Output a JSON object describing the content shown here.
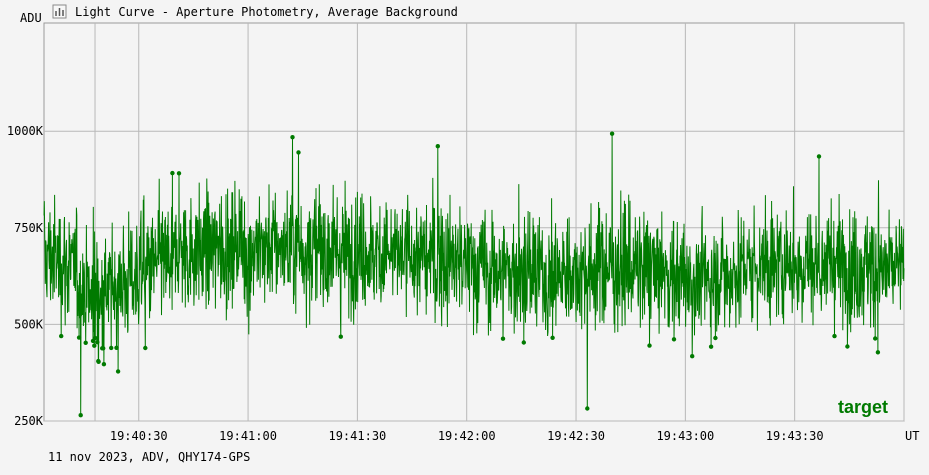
{
  "window": {
    "title": "Light Curve - Aperture Photometry, Average Background",
    "icon": "light-curve-icon"
  },
  "footer": {
    "info": "11 nov 2023, ADV, QHY174-GPS"
  },
  "colors": {
    "background": "#f4f4f4",
    "plot_background": "#f4f4f4",
    "grid": "#b8b8b8",
    "series": "#007a00",
    "series_label": "#007a00"
  },
  "chart_data": {
    "type": "scatter",
    "title": "Light Curve - Aperture Photometry, Average Background",
    "ylabel": "ADU",
    "xlabel": "UT",
    "y_ticks": [
      {
        "value": 250000,
        "label": "250K"
      },
      {
        "value": 500000,
        "label": "500K"
      },
      {
        "value": 750000,
        "label": "750K"
      },
      {
        "value": 1000000,
        "label": "1000K"
      }
    ],
    "x_ticks": [
      "19:40:30",
      "19:41:00",
      "19:41:30",
      "19:42:00",
      "19:42:30",
      "19:43:00",
      "19:43:30"
    ],
    "xlim": [
      "19:40:04",
      "19:44:00"
    ],
    "ylim": [
      250000,
      1280000
    ],
    "grid": true,
    "series": [
      {
        "name": "target",
        "connected_points": true,
        "approx_samples": 2600,
        "trend": {
          "time": [
            "19:40:04",
            "19:40:10",
            "19:40:18",
            "19:40:24",
            "19:40:34",
            "19:40:44",
            "19:40:58",
            "19:41:12",
            "19:41:26",
            "19:41:40",
            "19:41:54",
            "19:42:08",
            "19:42:22",
            "19:42:36",
            "19:42:50",
            "19:43:04",
            "19:43:18",
            "19:43:32",
            "19:43:46",
            "19:44:00"
          ],
          "mean": [
            680000,
            660000,
            560000,
            600000,
            650000,
            690000,
            700000,
            700000,
            690000,
            680000,
            665000,
            640000,
            620000,
            650000,
            640000,
            610000,
            650000,
            660000,
            650000,
            640000
          ]
        },
        "spread": 90000,
        "min": 265000,
        "max": 1080000
      }
    ]
  }
}
